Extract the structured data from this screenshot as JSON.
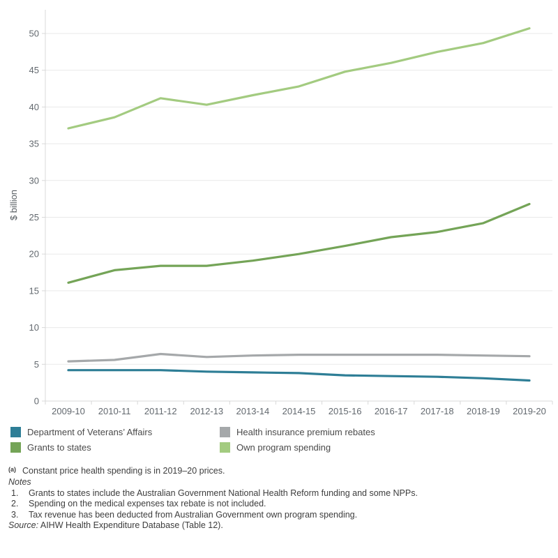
{
  "chart_data": {
    "type": "line",
    "categories": [
      "2009-10",
      "2010-11",
      "2011-12",
      "2012-13",
      "2013-14",
      "2014-15",
      "2015-16",
      "2016-17",
      "2017-18",
      "2018-19",
      "2019-20"
    ],
    "series": [
      {
        "name": "Department of Veterans’ Affairs",
        "color": "#2e7e96",
        "values": [
          4.2,
          4.2,
          4.2,
          4.0,
          3.9,
          3.8,
          3.5,
          3.4,
          3.3,
          3.1,
          2.8
        ]
      },
      {
        "name": "Health insurance premium rebates",
        "color": "#a5a8aa",
        "values": [
          5.4,
          5.6,
          6.4,
          6.0,
          6.2,
          6.3,
          6.3,
          6.3,
          6.3,
          6.2,
          6.1
        ]
      },
      {
        "name": "Grants to states",
        "color": "#74a457",
        "values": [
          16.1,
          17.8,
          18.4,
          18.4,
          19.1,
          20.0,
          21.1,
          22.3,
          23.0,
          24.2,
          26.8
        ]
      },
      {
        "name": "Own program spending",
        "color": "#a3cb80",
        "values": [
          37.1,
          38.6,
          41.2,
          40.3,
          41.6,
          42.8,
          44.8,
          46.0,
          47.5,
          48.7,
          50.7
        ]
      }
    ],
    "title": "",
    "xlabel": "",
    "ylabel": "$ billion",
    "ylim": [
      0,
      50
    ],
    "ytick_step": 5,
    "grid": "horizontal-only",
    "legend_position": "bottom-left-two-columns"
  },
  "legend": {
    "items": [
      {
        "label": "Department of Veterans’ Affairs",
        "color": "#2e7e96"
      },
      {
        "label": "Health insurance premium rebates",
        "color": "#a5a8aa"
      },
      {
        "label": "Grants to states",
        "color": "#74a457"
      },
      {
        "label": "Own program spending",
        "color": "#a3cb80"
      }
    ]
  },
  "footnote": {
    "marker": "(a)",
    "text": "Constant price health spending is in 2019–20 prices."
  },
  "notes": {
    "heading": "Notes",
    "items": [
      {
        "num": "1.",
        "text": "Grants to states include the Australian Government National Health Reform funding and some NPPs."
      },
      {
        "num": "2.",
        "text": "Spending on the medical expenses tax rebate is not included."
      },
      {
        "num": "3.",
        "text": "Tax revenue has been deducted from Australian Government own program spending."
      }
    ],
    "source_label": "Source:",
    "source_text": " AIHW Health Expenditure Database (Table 12)."
  },
  "style_colors": {
    "gridline": "#e9e9e9",
    "axis_line": "#d8d8d8",
    "tick_label": "#62686e",
    "axis_title": "#565c61"
  }
}
